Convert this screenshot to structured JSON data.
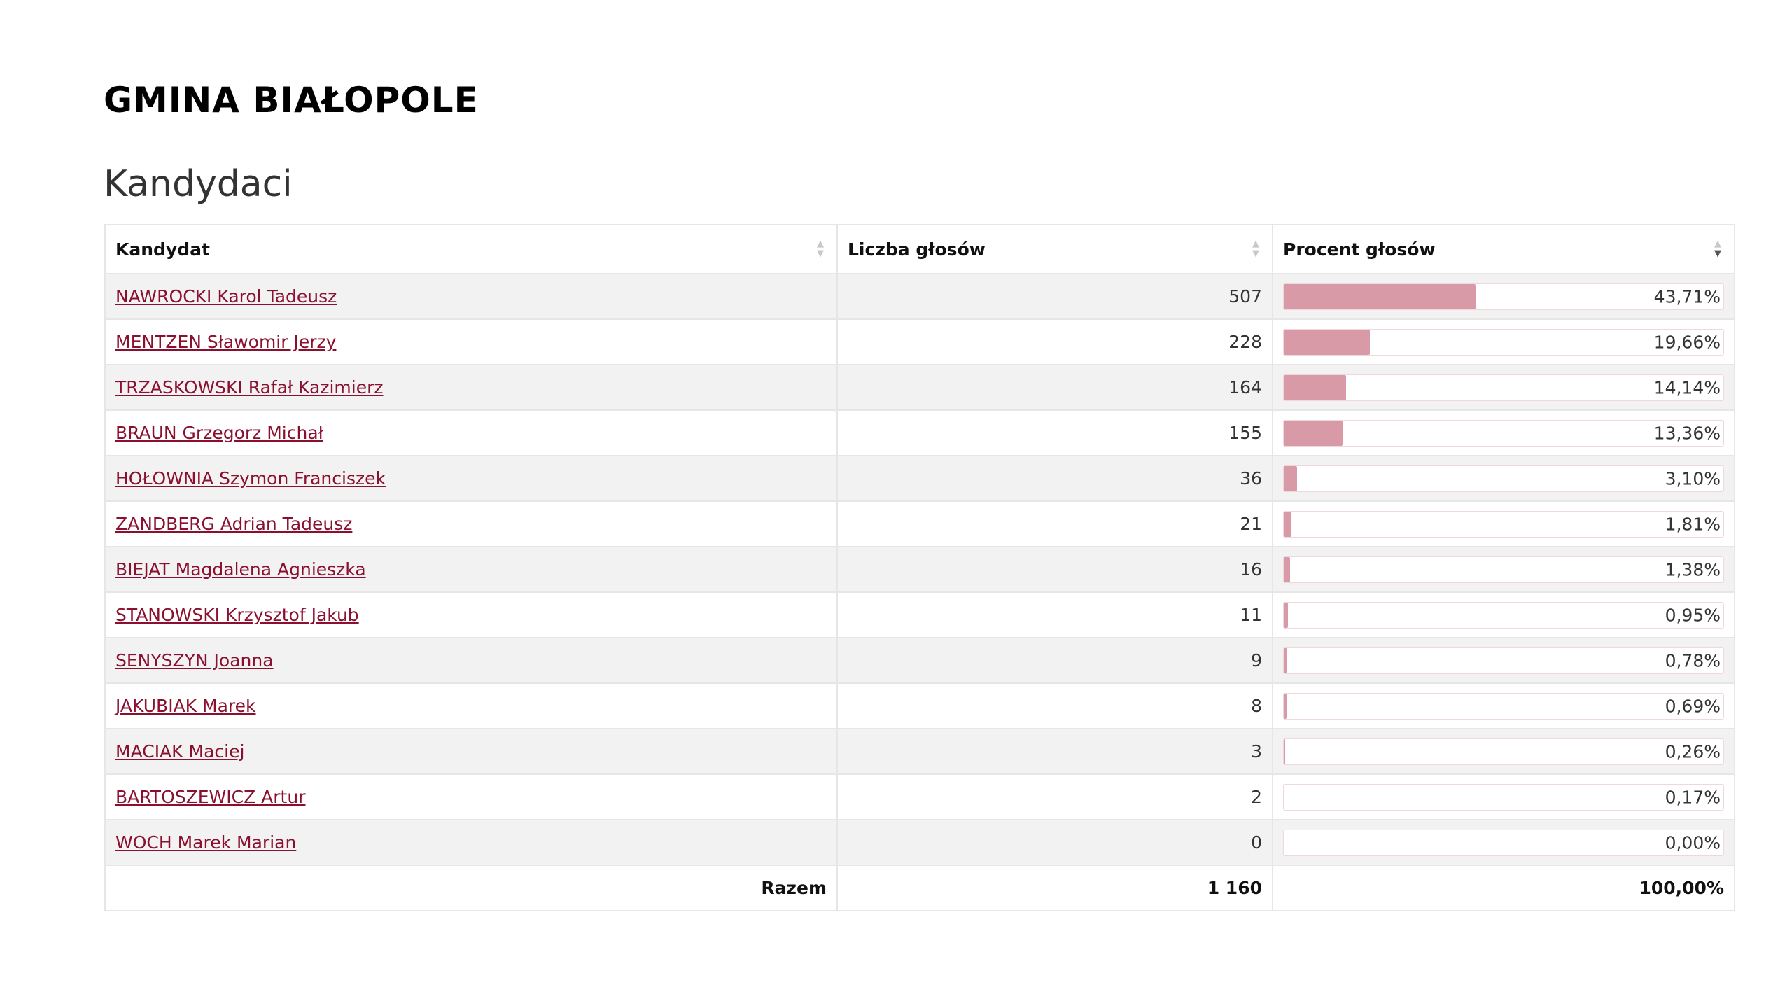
{
  "page": {
    "gmina_title": "GMINA BIAŁOPOLE",
    "section_title": "Kandydaci"
  },
  "table": {
    "headers": {
      "candidate": "Kandydat",
      "votes": "Liczba głosów",
      "percent": "Procent głosów"
    },
    "sort": {
      "column": "percent",
      "direction": "descending"
    },
    "rows": [
      {
        "name": "NAWROCKI Karol Tadeusz",
        "votes": "507",
        "percent_label": "43,71%",
        "percent": 43.71
      },
      {
        "name": "MENTZEN Sławomir Jerzy",
        "votes": "228",
        "percent_label": "19,66%",
        "percent": 19.66
      },
      {
        "name": "TRZASKOWSKI Rafał Kazimierz",
        "votes": "164",
        "percent_label": "14,14%",
        "percent": 14.14
      },
      {
        "name": "BRAUN Grzegorz Michał",
        "votes": "155",
        "percent_label": "13,36%",
        "percent": 13.36
      },
      {
        "name": "HOŁOWNIA Szymon Franciszek",
        "votes": "36",
        "percent_label": "3,10%",
        "percent": 3.1
      },
      {
        "name": "ZANDBERG Adrian Tadeusz",
        "votes": "21",
        "percent_label": "1,81%",
        "percent": 1.81
      },
      {
        "name": "BIEJAT Magdalena Agnieszka",
        "votes": "16",
        "percent_label": "1,38%",
        "percent": 1.38
      },
      {
        "name": "STANOWSKI Krzysztof Jakub",
        "votes": "11",
        "percent_label": "0,95%",
        "percent": 0.95
      },
      {
        "name": "SENYSZYN Joanna",
        "votes": "9",
        "percent_label": "0,78%",
        "percent": 0.78
      },
      {
        "name": "JAKUBIAK Marek",
        "votes": "8",
        "percent_label": "0,69%",
        "percent": 0.69
      },
      {
        "name": "MACIAK Maciej",
        "votes": "3",
        "percent_label": "0,26%",
        "percent": 0.26
      },
      {
        "name": "BARTOSZEWICZ Artur",
        "votes": "2",
        "percent_label": "0,17%",
        "percent": 0.17
      },
      {
        "name": "WOCH Marek Marian",
        "votes": "0",
        "percent_label": "0,00%",
        "percent": 0.0
      }
    ],
    "footer": {
      "label": "Razem",
      "votes": "1 160",
      "percent": "100,00%"
    }
  },
  "colors": {
    "bar_fill": "#d99aa8",
    "link": "#8b1030",
    "row_stripe": "#f2f2f2"
  }
}
